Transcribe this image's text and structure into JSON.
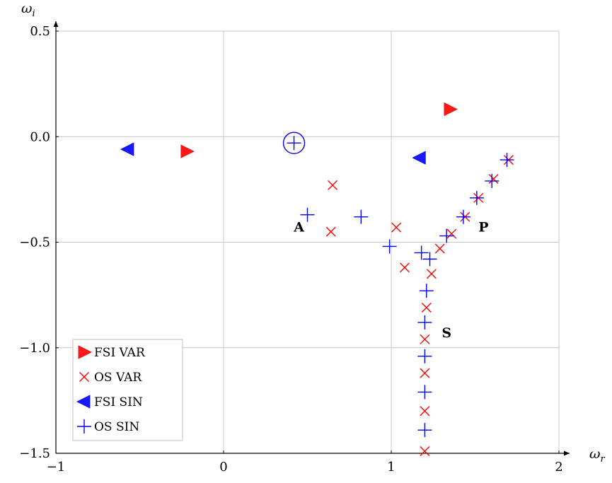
{
  "chart_data": {
    "type": "scatter",
    "title": "",
    "xlabel": "ω_r",
    "ylabel": "ω_i",
    "xlim": [
      -1,
      2
    ],
    "ylim": [
      -1.5,
      0.5
    ],
    "x_ticks": [
      -1,
      0,
      1,
      2
    ],
    "x_tick_labels": [
      "−1",
      "0",
      "1",
      "2"
    ],
    "y_ticks": [
      -1.5,
      -1.0,
      -0.5,
      0.0,
      0.5
    ],
    "y_tick_labels": [
      "−1.5",
      "−1.0",
      "−0.5",
      "0.0",
      "0.5"
    ],
    "grid": true,
    "legend_position": "bottom-left",
    "series": [
      {
        "name": "FSI VAR",
        "marker": "triangle-right",
        "color": "#ff0000",
        "points": [
          [
            -0.22,
            -0.07
          ],
          [
            1.35,
            0.13
          ]
        ]
      },
      {
        "name": "OS VAR",
        "marker": "x",
        "color": "#ff0000",
        "points": [
          [
            0.65,
            -0.23
          ],
          [
            0.64,
            -0.45
          ],
          [
            1.03,
            -0.43
          ],
          [
            1.08,
            -0.62
          ],
          [
            1.29,
            -0.53
          ],
          [
            1.36,
            -0.46
          ],
          [
            1.44,
            -0.38
          ],
          [
            1.52,
            -0.29
          ],
          [
            1.61,
            -0.2
          ],
          [
            1.7,
            -0.11
          ],
          [
            1.24,
            -0.65
          ],
          [
            1.21,
            -0.81
          ],
          [
            1.2,
            -0.96
          ],
          [
            1.2,
            -1.12
          ],
          [
            1.2,
            -1.3
          ],
          [
            1.2,
            -1.49
          ]
        ]
      },
      {
        "name": "FSI SIN",
        "marker": "triangle-left",
        "color": "#0000ff",
        "points": [
          [
            -0.57,
            -0.06
          ],
          [
            1.17,
            -0.1
          ]
        ]
      },
      {
        "name": "OS SIN",
        "marker": "plus",
        "color": "#0000ff",
        "points": [
          [
            0.5,
            -0.37
          ],
          [
            0.82,
            -0.38
          ],
          [
            0.99,
            -0.52
          ],
          [
            1.18,
            -0.55
          ],
          [
            1.23,
            -0.58
          ],
          [
            1.33,
            -0.47
          ],
          [
            1.43,
            -0.38
          ],
          [
            1.51,
            -0.29
          ],
          [
            1.6,
            -0.21
          ],
          [
            1.69,
            -0.11
          ],
          [
            1.21,
            -0.73
          ],
          [
            1.2,
            -0.88
          ],
          [
            1.2,
            -1.04
          ],
          [
            1.2,
            -1.21
          ],
          [
            1.2,
            -1.39
          ]
        ]
      }
    ],
    "highlight": {
      "marker": "circled-plus",
      "color": "#0000ff",
      "point": [
        0.42,
        -0.03
      ]
    },
    "annotations": [
      {
        "text": "A",
        "x": 0.45,
        "y": -0.45
      },
      {
        "text": "P",
        "x": 1.55,
        "y": -0.45
      },
      {
        "text": "S",
        "x": 1.33,
        "y": -0.95
      }
    ]
  }
}
